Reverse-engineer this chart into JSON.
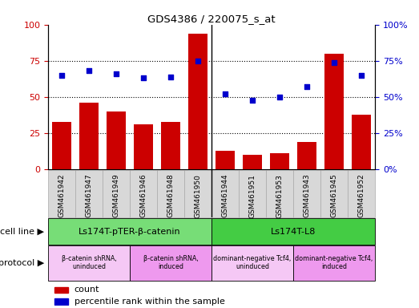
{
  "title": "GDS4386 / 220075_s_at",
  "samples": [
    "GSM461942",
    "GSM461947",
    "GSM461949",
    "GSM461946",
    "GSM461948",
    "GSM461950",
    "GSM461944",
    "GSM461951",
    "GSM461953",
    "GSM461943",
    "GSM461945",
    "GSM461952"
  ],
  "counts": [
    33,
    46,
    40,
    31,
    33,
    94,
    13,
    10,
    11,
    19,
    80,
    38
  ],
  "percentiles": [
    65,
    68,
    66,
    63,
    64,
    75,
    52,
    48,
    50,
    57,
    74,
    65
  ],
  "bar_color": "#cc0000",
  "dot_color": "#0000cc",
  "ylim_left": [
    0,
    100
  ],
  "ylim_right": [
    0,
    100
  ],
  "cell_line_groups": [
    {
      "label": "Ls174T-pTER-β-catenin",
      "start": 0,
      "end": 6,
      "color": "#77dd77"
    },
    {
      "label": "Ls174T-L8",
      "start": 6,
      "end": 12,
      "color": "#44cc44"
    }
  ],
  "protocol_groups": [
    {
      "label": "β-catenin shRNA,\nuninduced",
      "start": 0,
      "end": 3,
      "color": "#f5c8f5"
    },
    {
      "label": "β-catenin shRNA,\ninduced",
      "start": 3,
      "end": 6,
      "color": "#ee99ee"
    },
    {
      "label": "dominant-negative Tcf4,\nuninduced",
      "start": 6,
      "end": 9,
      "color": "#f5c8f5"
    },
    {
      "label": "dominant-negative Tcf4,\ninduced",
      "start": 9,
      "end": 12,
      "color": "#ee99ee"
    }
  ],
  "dotted_lines": [
    25,
    50,
    75
  ],
  "cell_line_label": "cell line",
  "protocol_label": "protocol",
  "legend_count_label": "count",
  "legend_pct_label": "percentile rank within the sample",
  "sample_box_color": "#d8d8d8",
  "tick_label_fontsize": 6.5,
  "bar_width": 0.7,
  "group_divider": 5.5
}
